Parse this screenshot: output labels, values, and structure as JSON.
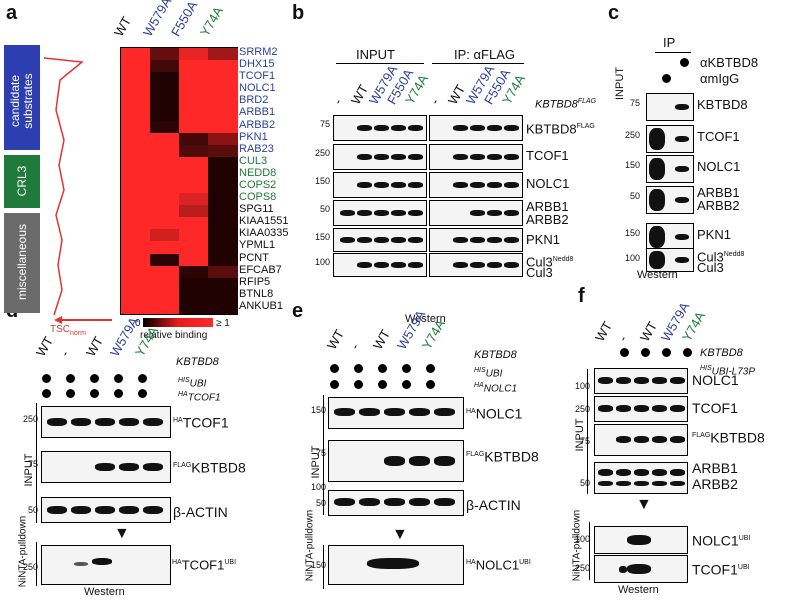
{
  "panels": {
    "a": "a",
    "b": "b",
    "c": "c",
    "d": "d",
    "e": "e",
    "f": "f"
  },
  "a": {
    "col_labels": [
      {
        "text": "WT",
        "color": "#111111"
      },
      {
        "text": "W579A",
        "color": "#2b3f9e"
      },
      {
        "text": "F550A",
        "color": "#2b3f9e"
      },
      {
        "text": "Y74A",
        "color": "#1f7a3b"
      }
    ],
    "groups": [
      {
        "label": "candidate substrates",
        "color": "#2d3fb0"
      },
      {
        "label": "CRL3",
        "color": "#1f7a3b"
      },
      {
        "label": "miscellaneous",
        "color": "#666666"
      }
    ],
    "tsc_label": "TSC",
    "tsc_sub": "norm",
    "legend": {
      "min": "0",
      "max": "≥ 1",
      "caption": "relative binding"
    },
    "rows": [
      {
        "name": "SRRM2",
        "color": "#2b3f9e",
        "values": [
          1,
          0.35,
          0.9,
          0.6
        ]
      },
      {
        "name": "DHX15",
        "color": "#2b3f9e",
        "values": [
          1,
          0.2,
          1,
          1
        ]
      },
      {
        "name": "TCOF1",
        "color": "#2b3f9e",
        "values": [
          1,
          0.05,
          1,
          1
        ]
      },
      {
        "name": "NOLC1",
        "color": "#2b3f9e",
        "values": [
          1,
          0.05,
          1,
          1
        ]
      },
      {
        "name": "BRD2",
        "color": "#2b3f9e",
        "values": [
          1,
          0.05,
          1,
          1
        ]
      },
      {
        "name": "ARBB1",
        "color": "#2b3f9e",
        "values": [
          1,
          0.05,
          1,
          1
        ]
      },
      {
        "name": "ARBB2",
        "color": "#2b3f9e",
        "values": [
          1,
          0.1,
          1,
          1
        ]
      },
      {
        "name": "PKN1",
        "color": "#2b3f9e",
        "values": [
          1,
          1,
          0.2,
          0.5
        ]
      },
      {
        "name": "RAB23",
        "color": "#2b3f9e",
        "values": [
          1,
          1,
          0.25,
          0.3
        ]
      },
      {
        "name": "CUL3",
        "color": "#1f7a3b",
        "values": [
          1,
          1,
          1,
          0.05
        ]
      },
      {
        "name": "NEDD8",
        "color": "#1f7a3b",
        "values": [
          1,
          1,
          1,
          0.05
        ]
      },
      {
        "name": "COPS2",
        "color": "#1f7a3b",
        "values": [
          1,
          1,
          1,
          0.05
        ]
      },
      {
        "name": "COPS8",
        "color": "#1f7a3b",
        "values": [
          1,
          1,
          0.85,
          0.05
        ]
      },
      {
        "name": "SPG11",
        "color": "#111111",
        "values": [
          1,
          1,
          0.7,
          0.05
        ]
      },
      {
        "name": "KIAA1551",
        "color": "#111111",
        "values": [
          1,
          1,
          1,
          0.05
        ]
      },
      {
        "name": "KIAA0335",
        "color": "#111111",
        "values": [
          1,
          0.8,
          1,
          0.05
        ]
      },
      {
        "name": "YPML1",
        "color": "#111111",
        "values": [
          1,
          1,
          1,
          0.05
        ]
      },
      {
        "name": "PCNT",
        "color": "#111111",
        "values": [
          1,
          0.1,
          1,
          0.05
        ]
      },
      {
        "name": "EFCAB7",
        "color": "#111111",
        "values": [
          1,
          1,
          0.1,
          0.3
        ]
      },
      {
        "name": "RFIP5",
        "color": "#111111",
        "values": [
          1,
          1,
          0.05,
          0.05
        ]
      },
      {
        "name": "BTNL8",
        "color": "#111111",
        "values": [
          1,
          1,
          0.05,
          0.05
        ]
      },
      {
        "name": "ANKUB1",
        "color": "#111111",
        "values": [
          1,
          1,
          0.05,
          0.05
        ]
      }
    ]
  },
  "b": {
    "input_label": "INPUT",
    "ip_label": "IP: αFLAG",
    "lanes": [
      {
        "text": "-",
        "color": "#111111"
      },
      {
        "text": "WT",
        "color": "#111111"
      },
      {
        "text": "W579A",
        "color": "#2b3f9e"
      },
      {
        "text": "F550A",
        "color": "#2b3f9e"
      },
      {
        "text": "Y74A",
        "color": "#1f7a3b"
      }
    ],
    "construct": "KBTBD8",
    "construct_sup": "FLAG",
    "rows": [
      {
        "mw": "75",
        "label": "KBTBD8",
        "sup": "FLAG"
      },
      {
        "mw": "250",
        "label": "TCOF1",
        "sup": ""
      },
      {
        "mw": "150",
        "label": "NOLC1",
        "sup": ""
      },
      {
        "mw": "50",
        "label": "ARBB1",
        "sup": "",
        "label2": "ARBB2"
      },
      {
        "mw": "150",
        "label": "PKN1",
        "sup": ""
      },
      {
        "mw": "100",
        "label": "Cul3",
        "sup": "Nedd8",
        "label2": "Cul3"
      }
    ],
    "footer": "Western"
  },
  "c": {
    "input_label": "INPUT",
    "ip_label": "IP",
    "ab1": "αKBTBD8",
    "ab2": "αmIgG",
    "rows": [
      {
        "mw": "75",
        "label": "KBTBD8"
      },
      {
        "mw": "250",
        "label": "TCOF1"
      },
      {
        "mw": "150",
        "label": "NOLC1"
      },
      {
        "mw": "50",
        "label": "ARBB1",
        "label2": "ARBB2"
      },
      {
        "mw": "150",
        "label": "PKN1"
      },
      {
        "mw": "100",
        "label": "Cul3",
        "sup": "Nedd8",
        "label2": "Cul3"
      }
    ],
    "footer": "Western"
  },
  "d": {
    "lanes": [
      {
        "text": "WT",
        "color": "#111111"
      },
      {
        "text": "-",
        "color": "#111111"
      },
      {
        "text": "WT",
        "color": "#111111"
      },
      {
        "text": "W579A",
        "color": "#2b3f9e"
      },
      {
        "text": "Y74A",
        "color": "#1f7a3b"
      }
    ],
    "construct": "KBTBD8",
    "ubi": "UBI",
    "ubi_sup": "HIS",
    "sub": "TCOF1",
    "sub_sup": "HA",
    "input_label": "INPUT",
    "rows": [
      {
        "mw": "250",
        "label": "TCOF1",
        "sup": "HA"
      },
      {
        "mw": "75",
        "label": "KBTBD8",
        "sup": "FLAG"
      },
      {
        "mw": "50",
        "label": "β-ACTIN",
        "sup": ""
      }
    ],
    "pulldown_label": "NiNTA-pulldown",
    "pulldown_mw": "250",
    "pulldown_name": "TCOF1",
    "pulldown_pre": "HA",
    "pulldown_sup": "UBI",
    "footer": "Western"
  },
  "e": {
    "lanes": [
      {
        "text": "WT",
        "color": "#111111"
      },
      {
        "text": "-",
        "color": "#111111"
      },
      {
        "text": "WT",
        "color": "#111111"
      },
      {
        "text": "W579A",
        "color": "#2b3f9e"
      },
      {
        "text": "Y74A",
        "color": "#1f7a3b"
      }
    ],
    "construct": "KBTBD8",
    "ubi": "UBI",
    "ubi_sup": "HIS",
    "sub": "NOLC1",
    "sub_sup": "HA",
    "input_label": "INPUT",
    "rows": [
      {
        "mw": "150",
        "label": "NOLC1",
        "sup": "HA"
      },
      {
        "mw": "75",
        "label": "KBTBD8",
        "sup": "FLAG"
      },
      {
        "mw": "50",
        "label": "β-ACTIN",
        "sup": ""
      }
    ],
    "mw_extra": "100",
    "pulldown_label": "NiNTA-pulldown",
    "pulldown_mw": "150",
    "pulldown_name": "NOLC1",
    "pulldown_pre": "HA",
    "pulldown_sup": "UBI",
    "footer": "Western"
  },
  "f": {
    "lanes": [
      {
        "text": "WT",
        "color": "#111111"
      },
      {
        "text": "-",
        "color": "#111111"
      },
      {
        "text": "WT",
        "color": "#111111"
      },
      {
        "text": "W579A",
        "color": "#2b3f9e"
      },
      {
        "text": "Y74A",
        "color": "#1f7a3b"
      }
    ],
    "construct": "KBTBD8",
    "ubi": "UBI-L73P",
    "ubi_sup": "HIS",
    "input_label": "INPUT",
    "rows": [
      {
        "mw": "100",
        "label": "NOLC1",
        "sup": ""
      },
      {
        "mw": "250",
        "label": "TCOF1",
        "sup": ""
      },
      {
        "mw": "75",
        "label": "KBTBD8",
        "sup": "FLAG"
      },
      {
        "mw": "50",
        "label": "ARBB1",
        "sup": "",
        "label2": "ARBB2"
      }
    ],
    "pulldown_label": "NiNTA-pulldown",
    "pulldown_rows": [
      {
        "mw": "100",
        "label": "NOLC1",
        "sup": "UBI"
      },
      {
        "mw": "250",
        "label": "TCOF1",
        "sup": "UBI"
      }
    ],
    "footer": "Western"
  }
}
